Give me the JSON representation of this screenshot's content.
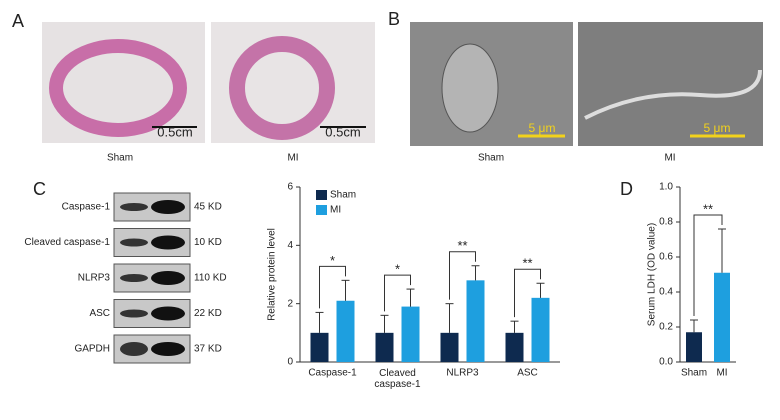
{
  "panels": [
    {
      "letter": "A",
      "captions": [
        "Sham",
        "MI"
      ],
      "scale_bar": "0.5cm"
    },
    {
      "letter": "B",
      "captions": [
        "Sham",
        "MI"
      ],
      "scale_bar": "5 μm"
    },
    {
      "letter": "C"
    },
    {
      "letter": "D"
    }
  ],
  "blot": {
    "rows": [
      {
        "label": "Caspase-1",
        "size": "45 KD"
      },
      {
        "label": "Cleaved caspase-1",
        "size": "10 KD"
      },
      {
        "label": "NLRP3",
        "size": "110 KD"
      },
      {
        "label": "ASC",
        "size": "22 KD"
      },
      {
        "label": "GAPDH",
        "size": "37 KD"
      }
    ]
  },
  "chart_data": [
    {
      "type": "bar",
      "y_label": "Relative protein level",
      "categories": [
        "Caspase-1",
        "Cleaved caspase-1",
        "NLRP3",
        "ASC"
      ],
      "series": [
        {
          "name": "Sham",
          "color": "#0e2a4f",
          "values": [
            1,
            1,
            1,
            1
          ],
          "errors": [
            0.7,
            0.6,
            1.0,
            0.4
          ]
        },
        {
          "name": "MI",
          "color": "#1e9fdf",
          "values": [
            2.1,
            1.9,
            2.8,
            2.2
          ],
          "errors": [
            0.7,
            0.6,
            0.5,
            0.5
          ]
        }
      ],
      "significance": [
        "*",
        "*",
        "**",
        "**"
      ],
      "ylim": [
        0,
        6
      ],
      "yticks": [
        0,
        2,
        4,
        6
      ],
      "legend": "upper left"
    },
    {
      "type": "bar",
      "y_label": "Serum LDH (OD value)",
      "categories": [
        "Sham",
        "MI"
      ],
      "values": [
        0.17,
        0.51
      ],
      "errors": [
        0.07,
        0.25
      ],
      "colors": [
        "#0e2a4f",
        "#1e9fdf"
      ],
      "significance": [
        "**"
      ],
      "ylim": [
        0,
        1
      ],
      "yticks": [
        {
          "value": 0,
          "label": "0.0"
        },
        0.2,
        0.4,
        0.6,
        0.8,
        {
          "value": 1,
          "label": "1.0"
        }
      ]
    }
  ]
}
